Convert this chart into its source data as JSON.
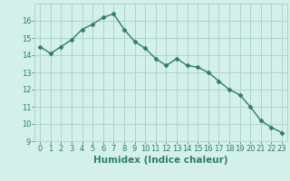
{
  "x": [
    0,
    1,
    2,
    3,
    4,
    5,
    6,
    7,
    8,
    9,
    10,
    11,
    12,
    13,
    14,
    15,
    16,
    17,
    18,
    19,
    20,
    21,
    22,
    23
  ],
  "y": [
    14.5,
    14.1,
    14.5,
    14.9,
    15.5,
    15.8,
    16.2,
    16.4,
    15.5,
    14.8,
    14.4,
    13.8,
    13.4,
    13.8,
    13.4,
    13.3,
    13.0,
    12.5,
    12.0,
    11.7,
    11.0,
    10.2,
    9.8,
    9.5
  ],
  "line_color": "#2d7d6e",
  "marker": "D",
  "marker_size": 2.5,
  "bg_color": "#d4f0ea",
  "grid_color": "#aed4cc",
  "xlabel": "Humidex (Indice chaleur)",
  "ylim": [
    9,
    17
  ],
  "xlim": [
    -0.5,
    23.5
  ],
  "yticks": [
    9,
    10,
    11,
    12,
    13,
    14,
    15,
    16
  ],
  "xticks": [
    0,
    1,
    2,
    3,
    4,
    5,
    6,
    7,
    8,
    9,
    10,
    11,
    12,
    13,
    14,
    15,
    16,
    17,
    18,
    19,
    20,
    21,
    22,
    23
  ],
  "tick_fontsize": 6,
  "xlabel_fontsize": 7.5
}
